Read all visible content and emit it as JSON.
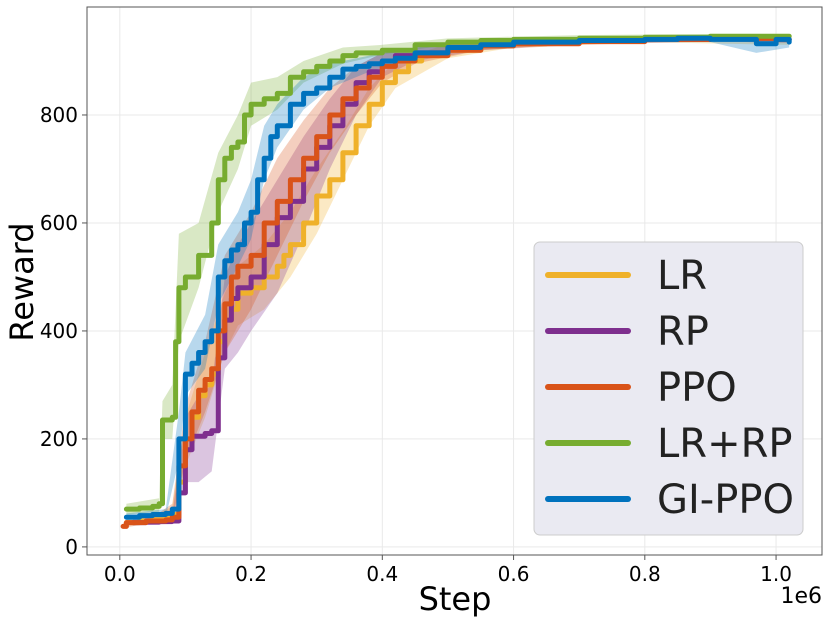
{
  "chart_data": {
    "type": "line",
    "xlabel": "Step",
    "ylabel": "Reward",
    "x_offset_label": "1e6",
    "xlim": [
      -0.05,
      1.07
    ],
    "ylim": [
      -15,
      1000
    ],
    "xticks": [
      0.0,
      0.2,
      0.4,
      0.6,
      0.8,
      1.0
    ],
    "xtick_labels": [
      "0.0",
      "0.2",
      "0.4",
      "0.6",
      "0.8",
      "1.0"
    ],
    "yticks": [
      0,
      200,
      400,
      600,
      800
    ],
    "ytick_labels": [
      "0",
      "200",
      "400",
      "600",
      "800"
    ],
    "grid": true,
    "legend_position": "lower-right",
    "series": [
      {
        "name": "LR",
        "color": "#efb12a",
        "points": [
          [
            0.01,
            45
          ],
          [
            0.03,
            48
          ],
          [
            0.05,
            50
          ],
          [
            0.07,
            52
          ],
          [
            0.08,
            60
          ],
          [
            0.09,
            120
          ],
          [
            0.1,
            200
          ],
          [
            0.11,
            240
          ],
          [
            0.12,
            280
          ],
          [
            0.13,
            300
          ],
          [
            0.14,
            320
          ],
          [
            0.15,
            380
          ],
          [
            0.16,
            420
          ],
          [
            0.17,
            440
          ],
          [
            0.18,
            470
          ],
          [
            0.2,
            480
          ],
          [
            0.22,
            500
          ],
          [
            0.24,
            520
          ],
          [
            0.25,
            540
          ],
          [
            0.26,
            560
          ],
          [
            0.28,
            600
          ],
          [
            0.3,
            650
          ],
          [
            0.32,
            680
          ],
          [
            0.34,
            730
          ],
          [
            0.36,
            780
          ],
          [
            0.38,
            820
          ],
          [
            0.4,
            860
          ],
          [
            0.42,
            880
          ],
          [
            0.44,
            900
          ],
          [
            0.46,
            910
          ],
          [
            0.5,
            920
          ],
          [
            0.55,
            928
          ],
          [
            0.6,
            932
          ],
          [
            0.65,
            935
          ],
          [
            0.7,
            938
          ],
          [
            0.8,
            940
          ],
          [
            0.9,
            942
          ],
          [
            1.0,
            940
          ],
          [
            1.02,
            940
          ]
        ],
        "band": [
          [
            0.01,
            40,
            52
          ],
          [
            0.05,
            45,
            56
          ],
          [
            0.08,
            50,
            75
          ],
          [
            0.1,
            150,
            240
          ],
          [
            0.13,
            240,
            360
          ],
          [
            0.16,
            360,
            470
          ],
          [
            0.18,
            410,
            520
          ],
          [
            0.22,
            440,
            560
          ],
          [
            0.26,
            500,
            620
          ],
          [
            0.3,
            580,
            700
          ],
          [
            0.34,
            680,
            770
          ],
          [
            0.38,
            780,
            850
          ],
          [
            0.42,
            850,
            900
          ],
          [
            0.5,
            905,
            932
          ],
          [
            0.6,
            925,
            938
          ],
          [
            0.8,
            935,
            945
          ],
          [
            1.0,
            930,
            948
          ],
          [
            1.02,
            930,
            948
          ]
        ]
      },
      {
        "name": "RP",
        "color": "#7e2f8e",
        "points": [
          [
            0.02,
            45
          ],
          [
            0.04,
            46
          ],
          [
            0.06,
            47
          ],
          [
            0.08,
            48
          ],
          [
            0.09,
            100
          ],
          [
            0.1,
            180
          ],
          [
            0.11,
            205
          ],
          [
            0.13,
            210
          ],
          [
            0.14,
            215
          ],
          [
            0.15,
            350
          ],
          [
            0.16,
            420
          ],
          [
            0.17,
            460
          ],
          [
            0.18,
            480
          ],
          [
            0.2,
            500
          ],
          [
            0.22,
            560
          ],
          [
            0.24,
            610
          ],
          [
            0.26,
            640
          ],
          [
            0.28,
            700
          ],
          [
            0.3,
            740
          ],
          [
            0.32,
            780
          ],
          [
            0.34,
            820
          ],
          [
            0.36,
            860
          ],
          [
            0.38,
            880
          ],
          [
            0.4,
            900
          ],
          [
            0.42,
            910
          ],
          [
            0.45,
            915
          ],
          [
            0.5,
            925
          ],
          [
            0.55,
            930
          ],
          [
            0.6,
            935
          ],
          [
            0.7,
            938
          ],
          [
            0.8,
            940
          ],
          [
            0.9,
            942
          ],
          [
            1.0,
            940
          ],
          [
            1.02,
            940
          ]
        ],
        "band": [
          [
            0.02,
            40,
            52
          ],
          [
            0.08,
            42,
            60
          ],
          [
            0.1,
            120,
            240
          ],
          [
            0.12,
            120,
            280
          ],
          [
            0.14,
            140,
            300
          ],
          [
            0.16,
            330,
            500
          ],
          [
            0.18,
            360,
            560
          ],
          [
            0.2,
            400,
            600
          ],
          [
            0.24,
            470,
            680
          ],
          [
            0.28,
            580,
            760
          ],
          [
            0.32,
            700,
            830
          ],
          [
            0.36,
            800,
            890
          ],
          [
            0.4,
            870,
            915
          ],
          [
            0.45,
            900,
            925
          ],
          [
            0.55,
            920,
            938
          ],
          [
            0.7,
            932,
            944
          ],
          [
            0.9,
            936,
            946
          ],
          [
            1.02,
            934,
            946
          ]
        ]
      },
      {
        "name": "PPO",
        "color": "#d95319",
        "points": [
          [
            0.005,
            38
          ],
          [
            0.01,
            45
          ],
          [
            0.04,
            48
          ],
          [
            0.07,
            50
          ],
          [
            0.08,
            55
          ],
          [
            0.09,
            150
          ],
          [
            0.1,
            200
          ],
          [
            0.11,
            250
          ],
          [
            0.12,
            290
          ],
          [
            0.13,
            310
          ],
          [
            0.14,
            330
          ],
          [
            0.15,
            400
          ],
          [
            0.16,
            450
          ],
          [
            0.17,
            500
          ],
          [
            0.18,
            520
          ],
          [
            0.2,
            540
          ],
          [
            0.22,
            600
          ],
          [
            0.24,
            640
          ],
          [
            0.26,
            680
          ],
          [
            0.28,
            720
          ],
          [
            0.3,
            760
          ],
          [
            0.32,
            800
          ],
          [
            0.34,
            830
          ],
          [
            0.36,
            850
          ],
          [
            0.38,
            870
          ],
          [
            0.4,
            890
          ],
          [
            0.42,
            900
          ],
          [
            0.45,
            910
          ],
          [
            0.5,
            920
          ],
          [
            0.55,
            928
          ],
          [
            0.6,
            932
          ],
          [
            0.7,
            936
          ],
          [
            0.8,
            940
          ],
          [
            0.9,
            942
          ],
          [
            1.0,
            940
          ],
          [
            1.02,
            940
          ]
        ],
        "band": [
          [
            0.005,
            35,
            45
          ],
          [
            0.05,
            45,
            55
          ],
          [
            0.08,
            50,
            80
          ],
          [
            0.1,
            160,
            260
          ],
          [
            0.13,
            250,
            380
          ],
          [
            0.16,
            360,
            540
          ],
          [
            0.2,
            440,
            620
          ],
          [
            0.24,
            540,
            720
          ],
          [
            0.28,
            640,
            790
          ],
          [
            0.32,
            730,
            850
          ],
          [
            0.36,
            800,
            890
          ],
          [
            0.4,
            860,
            915
          ],
          [
            0.45,
            895,
            925
          ],
          [
            0.55,
            920,
            935
          ],
          [
            0.7,
            930,
            942
          ],
          [
            0.9,
            936,
            946
          ],
          [
            1.02,
            934,
            946
          ]
        ]
      },
      {
        "name": "LR+RP",
        "color": "#77ac30",
        "points": [
          [
            0.01,
            70
          ],
          [
            0.03,
            72
          ],
          [
            0.05,
            75
          ],
          [
            0.06,
            80
          ],
          [
            0.065,
            235
          ],
          [
            0.08,
            240
          ],
          [
            0.085,
            380
          ],
          [
            0.09,
            480
          ],
          [
            0.1,
            500
          ],
          [
            0.12,
            540
          ],
          [
            0.14,
            600
          ],
          [
            0.15,
            680
          ],
          [
            0.16,
            720
          ],
          [
            0.17,
            740
          ],
          [
            0.18,
            750
          ],
          [
            0.19,
            800
          ],
          [
            0.2,
            820
          ],
          [
            0.22,
            830
          ],
          [
            0.24,
            840
          ],
          [
            0.26,
            870
          ],
          [
            0.28,
            880
          ],
          [
            0.3,
            890
          ],
          [
            0.32,
            900
          ],
          [
            0.34,
            910
          ],
          [
            0.36,
            915
          ],
          [
            0.4,
            920
          ],
          [
            0.45,
            930
          ],
          [
            0.5,
            935
          ],
          [
            0.55,
            938
          ],
          [
            0.6,
            940
          ],
          [
            0.7,
            942
          ],
          [
            0.8,
            944
          ],
          [
            0.9,
            946
          ],
          [
            1.0,
            946
          ],
          [
            1.02,
            946
          ]
        ],
        "band": [
          [
            0.01,
            60,
            80
          ],
          [
            0.06,
            65,
            90
          ],
          [
            0.065,
            200,
            270
          ],
          [
            0.08,
            200,
            300
          ],
          [
            0.09,
            380,
            580
          ],
          [
            0.12,
            480,
            600
          ],
          [
            0.15,
            620,
            730
          ],
          [
            0.18,
            700,
            800
          ],
          [
            0.2,
            780,
            860
          ],
          [
            0.24,
            810,
            870
          ],
          [
            0.28,
            860,
            900
          ],
          [
            0.34,
            895,
            925
          ],
          [
            0.4,
            912,
            930
          ],
          [
            0.5,
            930,
            942
          ],
          [
            0.7,
            938,
            948
          ],
          [
            0.9,
            942,
            950
          ],
          [
            1.02,
            942,
            950
          ]
        ]
      },
      {
        "name": "GI-PPO",
        "color": "#0072bd",
        "points": [
          [
            0.01,
            55
          ],
          [
            0.03,
            58
          ],
          [
            0.05,
            60
          ],
          [
            0.07,
            62
          ],
          [
            0.08,
            70
          ],
          [
            0.09,
            200
          ],
          [
            0.1,
            320
          ],
          [
            0.11,
            340
          ],
          [
            0.12,
            360
          ],
          [
            0.13,
            380
          ],
          [
            0.14,
            400
          ],
          [
            0.15,
            500
          ],
          [
            0.16,
            530
          ],
          [
            0.17,
            550
          ],
          [
            0.18,
            560
          ],
          [
            0.19,
            600
          ],
          [
            0.2,
            620
          ],
          [
            0.21,
            680
          ],
          [
            0.22,
            720
          ],
          [
            0.23,
            760
          ],
          [
            0.24,
            780
          ],
          [
            0.26,
            820
          ],
          [
            0.28,
            840
          ],
          [
            0.3,
            850
          ],
          [
            0.32,
            870
          ],
          [
            0.34,
            885
          ],
          [
            0.36,
            890
          ],
          [
            0.38,
            895
          ],
          [
            0.4,
            900
          ],
          [
            0.42,
            905
          ],
          [
            0.45,
            915
          ],
          [
            0.5,
            925
          ],
          [
            0.55,
            930
          ],
          [
            0.6,
            935
          ],
          [
            0.7,
            938
          ],
          [
            0.8,
            940
          ],
          [
            0.85,
            942
          ],
          [
            0.9,
            940
          ],
          [
            0.95,
            940
          ],
          [
            0.97,
            932
          ],
          [
            1.0,
            940
          ],
          [
            1.02,
            935
          ]
        ],
        "band": [
          [
            0.01,
            50,
            62
          ],
          [
            0.07,
            55,
            70
          ],
          [
            0.09,
            160,
            250
          ],
          [
            0.1,
            280,
            360
          ],
          [
            0.13,
            330,
            430
          ],
          [
            0.15,
            450,
            560
          ],
          [
            0.18,
            520,
            620
          ],
          [
            0.2,
            570,
            680
          ],
          [
            0.22,
            680,
            780
          ],
          [
            0.24,
            740,
            820
          ],
          [
            0.28,
            810,
            870
          ],
          [
            0.32,
            850,
            895
          ],
          [
            0.38,
            880,
            910
          ],
          [
            0.45,
            905,
            925
          ],
          [
            0.55,
            925,
            938
          ],
          [
            0.7,
            934,
            944
          ],
          [
            0.9,
            935,
            946
          ],
          [
            0.97,
            915,
            940
          ],
          [
            1.02,
            925,
            945
          ]
        ]
      }
    ]
  }
}
